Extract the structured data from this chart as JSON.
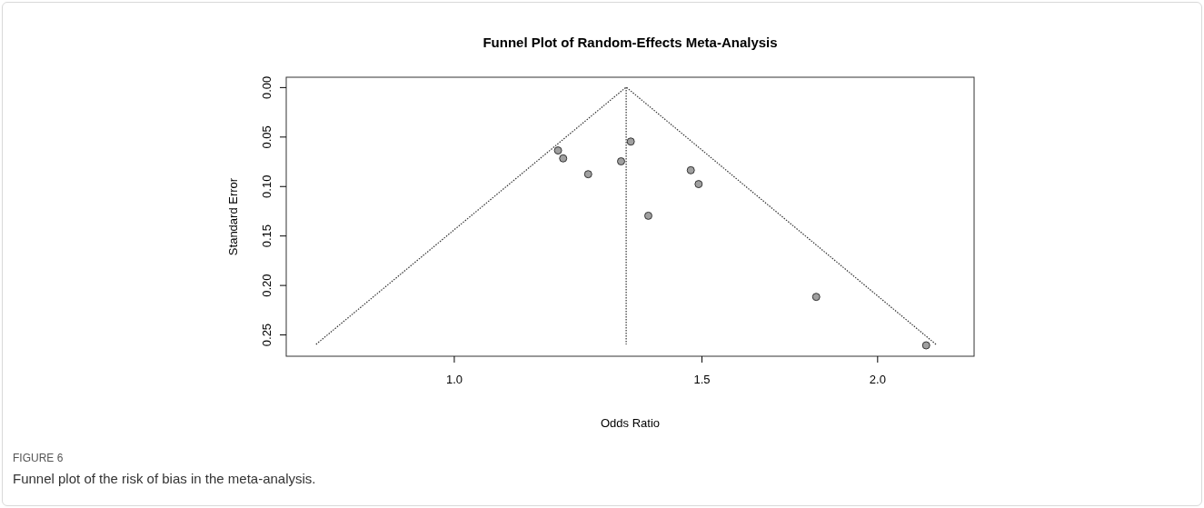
{
  "chart_data": {
    "type": "scatter",
    "title": "Funnel Plot of Random-Effects Meta-Analysis",
    "xlabel": "Odds Ratio",
    "ylabel": "Standard Error",
    "log": "x",
    "marker": "circle",
    "xlim": [
      0.76,
      2.344
    ],
    "xticks": [
      {
        "value": 1,
        "label": "1.0"
      },
      {
        "value": 1.5,
        "label": "1.5"
      },
      {
        "value": 2,
        "label": "2.0"
      }
    ],
    "ylim": [
      0.272,
      -0.01
    ],
    "yticks": [
      {
        "value": 0,
        "label": "0.00"
      },
      {
        "value": 0.05,
        "label": "0.05"
      },
      {
        "value": 0.1,
        "label": "0.10"
      },
      {
        "value": 0.15,
        "label": "0.15"
      },
      {
        "value": 0.2,
        "label": "0.20"
      },
      {
        "value": 0.25,
        "label": "0.25"
      }
    ],
    "series": [
      {
        "color": "#a0a0a0",
        "x": [
          1.186,
          1.196,
          1.246,
          1.315,
          1.336,
          1.474,
          1.493,
          1.375,
          1.81,
          2.167
        ],
        "values": [
          0.064,
          0.072,
          0.088,
          0.075,
          0.055,
          0.084,
          0.098,
          0.13,
          0.212,
          0.261
        ]
      },
      {
        "type": "line",
        "color": "#333333",
        "line_style": "dotted",
        "marker": "none",
        "x": [
          0.798,
          1.326,
          2.202
        ],
        "values": [
          0.26,
          0,
          0.26
        ]
      },
      {
        "type": "line",
        "color": "#333333",
        "line_style": "dotted",
        "marker": "none",
        "x": [
          1.326,
          1.326
        ],
        "values": [
          0,
          0.26
        ]
      }
    ],
    "annotations": [
      "FIGURE 6",
      "Funnel plot of the risk of bias in the meta-analysis."
    ]
  }
}
